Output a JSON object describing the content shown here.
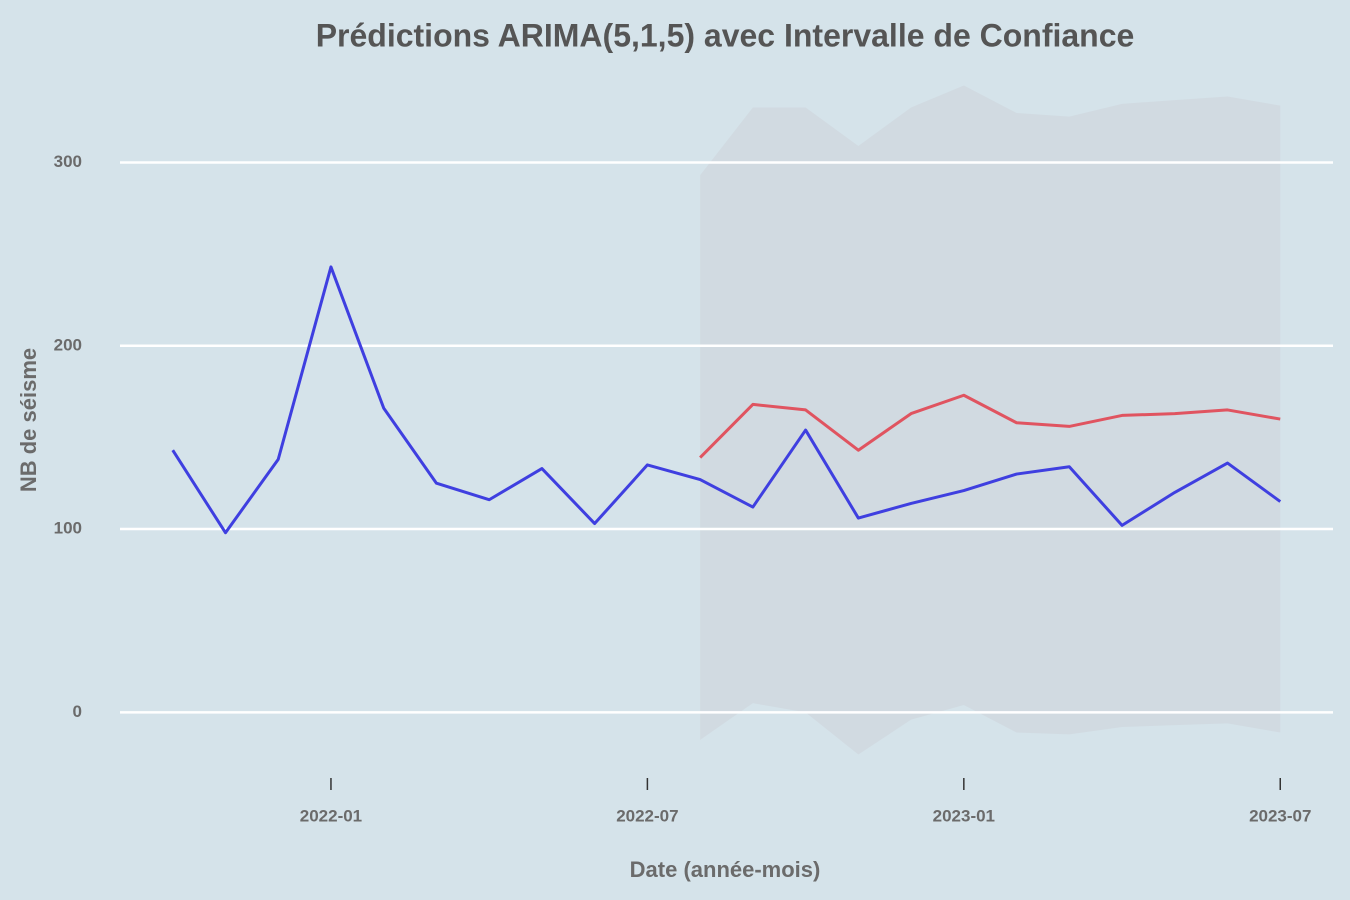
{
  "chart_data": {
    "type": "line",
    "title": "Prédictions ARIMA(5,1,5) avec Intervalle de Confiance",
    "x_label": "Date (année-mois)",
    "y_label": "NB de séisme",
    "x": [
      "2021-10",
      "2021-11",
      "2021-12",
      "2022-01",
      "2022-02",
      "2022-03",
      "2022-04",
      "2022-05",
      "2022-06",
      "2022-07",
      "2022-08",
      "2022-09",
      "2022-10",
      "2022-11",
      "2022-12",
      "2023-01",
      "2023-02",
      "2023-03",
      "2023-04",
      "2023-05",
      "2023-06",
      "2023-07"
    ],
    "series": [
      {
        "color": "#3f3fe0",
        "values": [
          143,
          98,
          138,
          243,
          166,
          125,
          116,
          133,
          103,
          135,
          127,
          112,
          154,
          106,
          114,
          121,
          130,
          134,
          102,
          120,
          136,
          115
        ]
      },
      {
        "color": "#e05460",
        "values": [
          null,
          null,
          null,
          null,
          null,
          null,
          null,
          null,
          null,
          null,
          139,
          168,
          165,
          143,
          163,
          173,
          158,
          156,
          162,
          163,
          165,
          160
        ]
      }
    ],
    "band": {
      "color": "#d0d8df",
      "upper": [
        null,
        null,
        null,
        null,
        null,
        null,
        null,
        null,
        null,
        null,
        293,
        330,
        330,
        309,
        330,
        342,
        327,
        325,
        332,
        334,
        336,
        331
      ],
      "lower": [
        null,
        null,
        null,
        null,
        null,
        null,
        null,
        null,
        null,
        null,
        -15,
        5,
        0,
        -23,
        -4,
        4,
        -11,
        -12,
        -8,
        -7,
        -6,
        -11
      ]
    },
    "xlim": [
      "2021-09",
      "2023-08"
    ],
    "xticks": [
      "2022-01",
      "2022-07",
      "2023-01",
      "2023-07"
    ],
    "ylim": [
      -26,
      345
    ],
    "yticks": [
      0,
      100,
      200,
      300
    ],
    "grid": true
  }
}
